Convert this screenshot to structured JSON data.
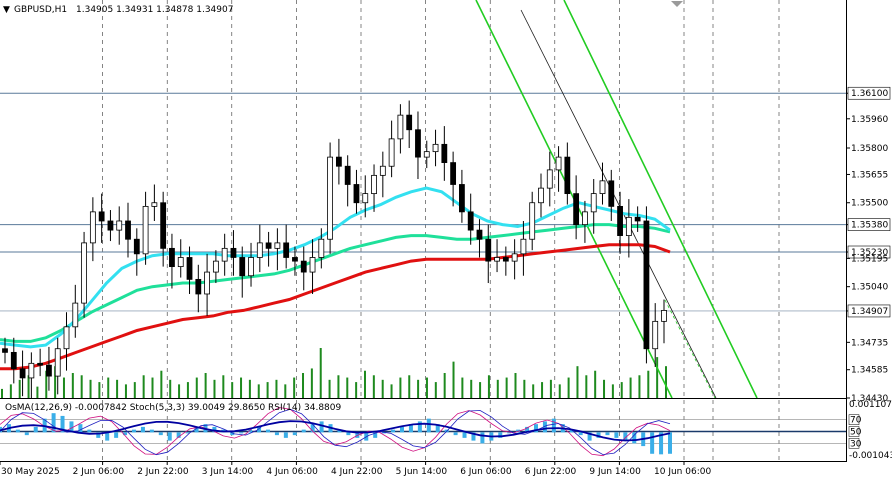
{
  "header": {
    "symbol": "GBPUSD,H1",
    "ohlc": "1.34905 1.34931 1.34878 1.34907"
  },
  "indicator_header": "OsMA(12,26,9) -0.0007842  Stoch(5,3,3) 39.0049 29.8650  RSI(14) 34.8809",
  "colors": {
    "bull_candle": "#000000",
    "bear_candle": "#000000",
    "ma_fast": "#33e0f0",
    "ma_mid": "#1fe09a",
    "ma_slow": "#e01010",
    "channel": "#22cc22",
    "volume": "#1e8a1e",
    "osma": "#3aaee8",
    "stoch_main": "#2020c0",
    "stoch_signal": "#d01080",
    "rsi": "#0000a0",
    "hline": "#5a7a9a",
    "price_badge_bg": "#ffffff"
  },
  "chart_data": {
    "type": "line",
    "title": "GBPUSD,H1",
    "ylim": [
      1.3443,
      1.366
    ],
    "y_ticks": [
      "1.36100",
      "1.35960",
      "1.35800",
      "1.35655",
      "1.35500",
      "1.35380",
      "1.35230",
      "1.35195",
      "1.35040",
      "1.34907",
      "1.34735",
      "1.34585",
      "1.34430"
    ],
    "x_tick_labels": [
      "30 May 2025",
      "2 Jun 06:00",
      "2 Jun 22:00",
      "3 Jun 14:00",
      "4 Jun 06:00",
      "4 Jun 22:00",
      "5 Jun 14:00",
      "6 Jun 06:00",
      "6 Jun 22:00",
      "9 Jun 14:00",
      "10 Jun 06:00"
    ],
    "horizontal_levels": [
      1.361,
      1.3538,
      1.3523,
      1.34907
    ],
    "current_price": "1.34907",
    "highlighted_levels": [
      "1.36100",
      "1.35380",
      "1.35230",
      "1.34907"
    ],
    "series": [
      {
        "key": "close",
        "values": [
          1.3468,
          1.3459,
          1.3454,
          1.3462,
          1.3461,
          1.3455,
          1.347,
          1.3482,
          1.3495,
          1.3528,
          1.3545,
          1.354,
          1.3535,
          1.354,
          1.353,
          1.3522,
          1.3548,
          1.355,
          1.3525,
          1.3515,
          1.352,
          1.3508,
          1.35,
          1.3512,
          1.3518,
          1.3525,
          1.352,
          1.351,
          1.352,
          1.3528,
          1.3525,
          1.3528,
          1.352,
          1.3518,
          1.3512,
          1.352,
          1.353,
          1.3575,
          1.357,
          1.356,
          1.355,
          1.3555,
          1.3565,
          1.357,
          1.3585,
          1.3598,
          1.359,
          1.3575,
          1.3578,
          1.3582,
          1.3572,
          1.356,
          1.3545,
          1.3535,
          1.353,
          1.3518,
          1.352,
          1.3518,
          1.3522,
          1.353,
          1.355,
          1.3558,
          1.3568,
          1.3575,
          1.3555,
          1.3538,
          1.3545,
          1.3555,
          1.3562,
          1.3548,
          1.3532,
          1.3542,
          1.354,
          1.347,
          1.3485,
          1.3491
        ]
      },
      {
        "key": "ma_fast",
        "values": [
          1.3473,
          1.3472,
          1.3471,
          1.3472,
          1.3478,
          1.3486,
          1.3496,
          1.3506,
          1.3514,
          1.3518,
          1.3521,
          1.3522,
          1.3522,
          1.3522,
          1.3522,
          1.3521,
          1.3521,
          1.3521,
          1.3522,
          1.3524,
          1.3527,
          1.3531,
          1.3536,
          1.3542,
          1.3546,
          1.3549,
          1.3553,
          1.3556,
          1.3558,
          1.3556,
          1.355,
          1.3544,
          1.354,
          1.3538,
          1.3537,
          1.3539,
          1.3543,
          1.3547,
          1.355,
          1.3548,
          1.3546,
          1.3544,
          1.3543,
          1.3541,
          1.3535
        ]
      },
      {
        "key": "ma_mid",
        "values": [
          1.3475,
          1.3474,
          1.3474,
          1.3476,
          1.348,
          1.3485,
          1.349,
          1.3494,
          1.3498,
          1.3502,
          1.3504,
          1.3505,
          1.3506,
          1.3506,
          1.3507,
          1.3508,
          1.3509,
          1.351,
          1.3511,
          1.3513,
          1.3516,
          1.3519,
          1.3522,
          1.3525,
          1.3527,
          1.3529,
          1.3531,
          1.3532,
          1.3532,
          1.3531,
          1.353,
          1.353,
          1.3531,
          1.3532,
          1.3533,
          1.3534,
          1.3535,
          1.3536,
          1.3537,
          1.3538,
          1.3538,
          1.3537,
          1.3537,
          1.3536,
          1.3534
        ]
      },
      {
        "key": "ma_slow",
        "values": [
          1.3459,
          1.3459,
          1.346,
          1.3462,
          1.3465,
          1.3468,
          1.3471,
          1.3474,
          1.3477,
          1.348,
          1.3482,
          1.3484,
          1.3486,
          1.3487,
          1.3488,
          1.349,
          1.3491,
          1.3493,
          1.3495,
          1.3497,
          1.35,
          1.3503,
          1.3506,
          1.3509,
          1.3512,
          1.3514,
          1.3516,
          1.3518,
          1.3519,
          1.3519,
          1.3519,
          1.3519,
          1.3519,
          1.352,
          1.3521,
          1.3522,
          1.3523,
          1.3524,
          1.3525,
          1.3526,
          1.3527,
          1.3527,
          1.3527,
          1.3526,
          1.3523
        ]
      }
    ],
    "volume": [
      4,
      6,
      8,
      10,
      5,
      12,
      14,
      9,
      11,
      10,
      8,
      7,
      9,
      8,
      6,
      7,
      10,
      9,
      12,
      8,
      6,
      7,
      9,
      11,
      8,
      10,
      7,
      9,
      8,
      6,
      7,
      8,
      6,
      9,
      11,
      13,
      22,
      8,
      10,
      9,
      7,
      12,
      10,
      8,
      6,
      9,
      10,
      8,
      9,
      7,
      11,
      16,
      9,
      8,
      7,
      10,
      8,
      9,
      11,
      8,
      6,
      7,
      8,
      6,
      9,
      14,
      10,
      12,
      8,
      6,
      7,
      9,
      10,
      12,
      18,
      14
    ],
    "indicator": {
      "osma_ylim": [
        -0.001043,
        0.001107
      ],
      "osma_ticks": [
        "0.0011071",
        "-0.001043"
      ],
      "oscillator_levels": [
        "70",
        "50",
        "30"
      ],
      "osma": [
        0.0002,
        0.0003,
        0.0001,
        -0.0001,
        0.0002,
        0.0005,
        0.0007,
        0.0006,
        0.0004,
        0.0003,
        0.0001,
        -0.0002,
        -0.0003,
        -0.0002,
        -0.0001,
        0.0001,
        0.0002,
        0.0001,
        -0.0001,
        -0.0003,
        -0.0002,
        0.0,
        0.0002,
        0.0003,
        0.0002,
        0.0001,
        -0.0001,
        0.0,
        0.0001,
        0.0002,
        0.0001,
        -0.0001,
        -0.0002,
        -0.0001,
        0.0001,
        0.0003,
        0.0004,
        0.0003,
        0.0001,
        -0.0001,
        -0.0002,
        -0.0003,
        -0.0002,
        0.0,
        0.0001,
        0.0002,
        0.0003,
        0.0004,
        0.0005,
        0.0003,
        0.0001,
        -0.0001,
        -0.0002,
        -0.0003,
        -0.0004,
        -0.0003,
        -0.0002,
        0.0,
        0.0001,
        0.0002,
        0.0003,
        0.0004,
        0.0005,
        0.0003,
        0.0001,
        -0.0001,
        -0.0003,
        -0.0002,
        -0.0001,
        -0.0002,
        -0.0003,
        -0.0004,
        -0.0005,
        -0.00078,
        -0.0008,
        -0.00078
      ]
    }
  }
}
